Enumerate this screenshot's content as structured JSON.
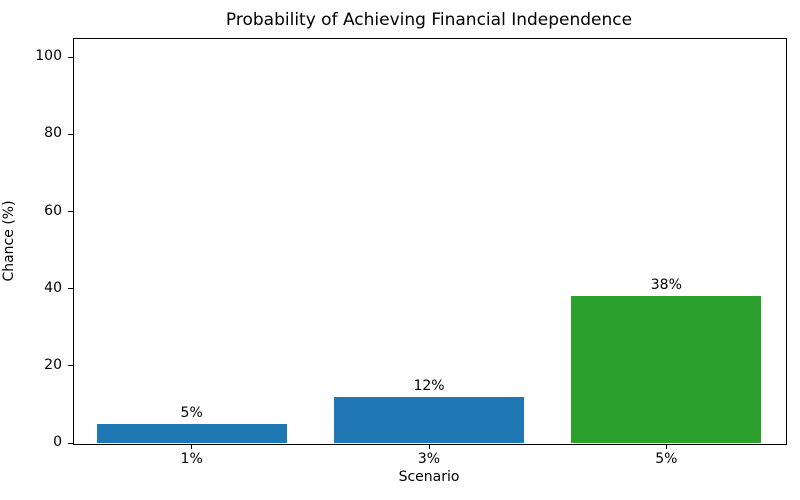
{
  "chart_data": {
    "type": "bar",
    "title": "Probability of Achieving Financial Independence",
    "xlabel": "Scenario",
    "ylabel": "Chance (%)",
    "categories": [
      "1%",
      "3%",
      "5%"
    ],
    "values": [
      5,
      12,
      38
    ],
    "value_labels": [
      "5%",
      "12%",
      "38%"
    ],
    "series": [
      {
        "name": "Chance",
        "values": [
          5,
          12,
          38
        ]
      }
    ],
    "bar_colors": [
      "#1f77b4",
      "#1f77b4",
      "#2ca02c"
    ],
    "ylim": [
      0,
      105
    ],
    "yticks": [
      0,
      20,
      40,
      60,
      80,
      100
    ],
    "bar_width_fraction": 0.8,
    "grid": "off",
    "legend": "none",
    "background_color": "#ffffff",
    "spine_color": "#000000",
    "accent_blue": "#1f77b4",
    "accent_green": "#2ca02c"
  }
}
